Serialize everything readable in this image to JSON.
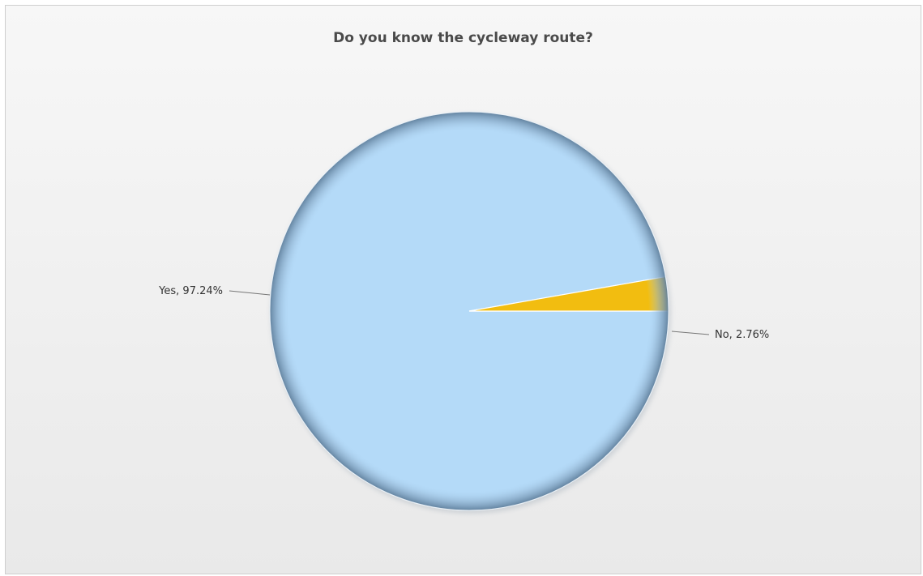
{
  "chart_data": {
    "type": "pie",
    "title": "Do you know the cycleway route?",
    "slices": [
      {
        "name": "Yes",
        "value": 97.24,
        "label": "Yes, 97.24%",
        "color": "#b4daf8"
      },
      {
        "name": "No",
        "value": 2.76,
        "label": "No, 2.76%",
        "color": "#f2bd10"
      }
    ],
    "start_angle": "3 o'clock, clockwise",
    "rim_color": "#6f8fac"
  }
}
